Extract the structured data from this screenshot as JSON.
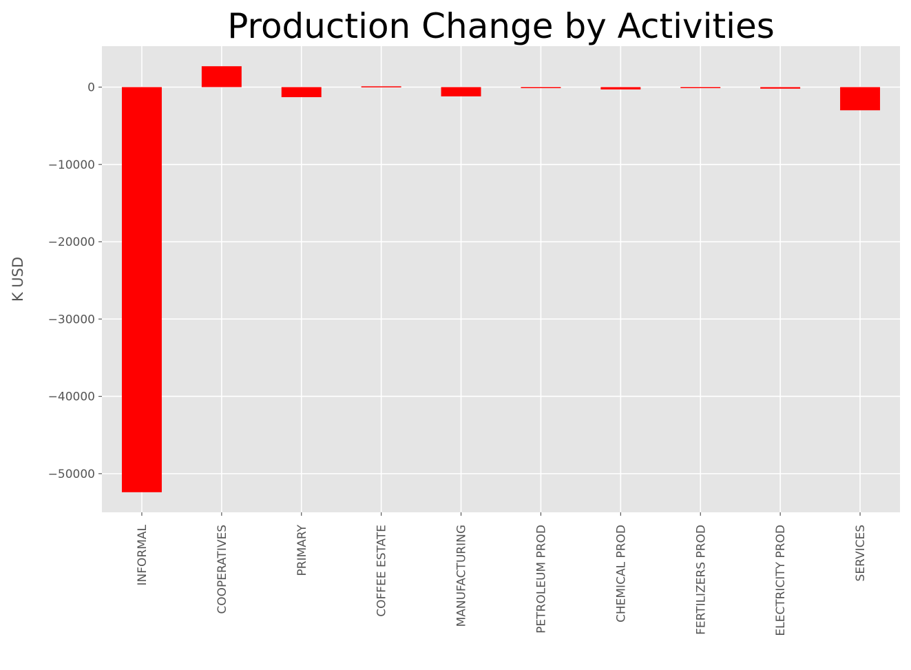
{
  "chart_data": {
    "type": "bar",
    "title": "Production Change by Activities",
    "xlabel": "",
    "ylabel": "K USD",
    "categories": [
      "INFORMAL",
      "COOPERATIVES",
      "PRIMARY",
      "COFFEE ESTATE",
      "MANUFACTURING",
      "PETROLEUM PROD",
      "CHEMICAL PROD",
      "FERTILIZERS PROD",
      "ELECTRICITY PROD",
      "SERVICES"
    ],
    "values": [
      -52400,
      2700,
      -1300,
      100,
      -1200,
      -100,
      -300,
      -100,
      -200,
      -3000
    ],
    "yticks": [
      0,
      -10000,
      -20000,
      -30000,
      -40000,
      -50000
    ],
    "ytick_labels": [
      "0",
      "−10000",
      "−20000",
      "−30000",
      "−40000",
      "−50000"
    ],
    "ylim": [
      -55000,
      5300
    ],
    "grid": true,
    "colors": {
      "bar": "#ff0000",
      "plot_bg": "#e5e5e5",
      "grid": "#ffffff"
    }
  }
}
